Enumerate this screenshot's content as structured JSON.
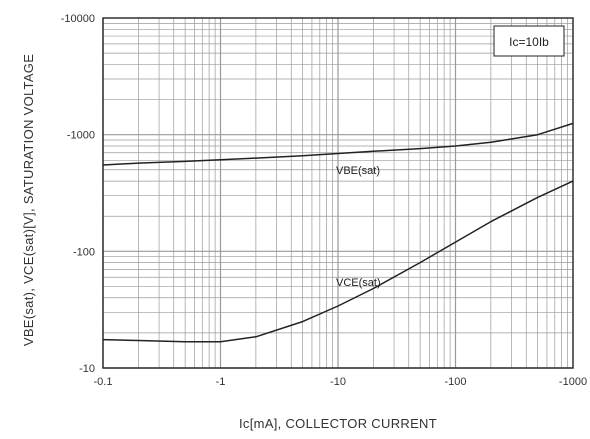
{
  "chart_data": {
    "type": "line",
    "xscale": "log",
    "yscale": "log",
    "xlim": [
      0.1,
      1000
    ],
    "ylim": [
      10,
      10000
    ],
    "xticks": [
      "-0.1",
      "-1",
      "-10",
      "-100",
      "-1000"
    ],
    "yticks": [
      "-10",
      "-100",
      "-1000",
      "-10000"
    ],
    "xlabel": "Ic[mA], COLLECTOR CURRENT",
    "ylabel": "VBE(sat), VCE(sat)[V], SATURATION VOLTAGE",
    "annotation": "Ic=10Ib",
    "grid": true,
    "series": [
      {
        "name": "VBE(sat)",
        "x": [
          0.1,
          0.2,
          0.5,
          1,
          2,
          5,
          10,
          20,
          50,
          100,
          200,
          500,
          1000
        ],
        "y": [
          550,
          570,
          590,
          610,
          630,
          660,
          690,
          720,
          760,
          800,
          860,
          1000,
          1250
        ]
      },
      {
        "name": "VCE(sat)",
        "x": [
          0.1,
          0.2,
          0.5,
          1,
          2,
          5,
          10,
          20,
          50,
          100,
          200,
          500,
          1000
        ],
        "y": [
          17.5,
          17.2,
          16.8,
          16.8,
          18.5,
          25,
          34,
          48,
          80,
          120,
          180,
          290,
          400
        ]
      }
    ]
  },
  "colors": {
    "grid": "#9a9a9a",
    "frame": "#222222",
    "curve": "#222222"
  }
}
